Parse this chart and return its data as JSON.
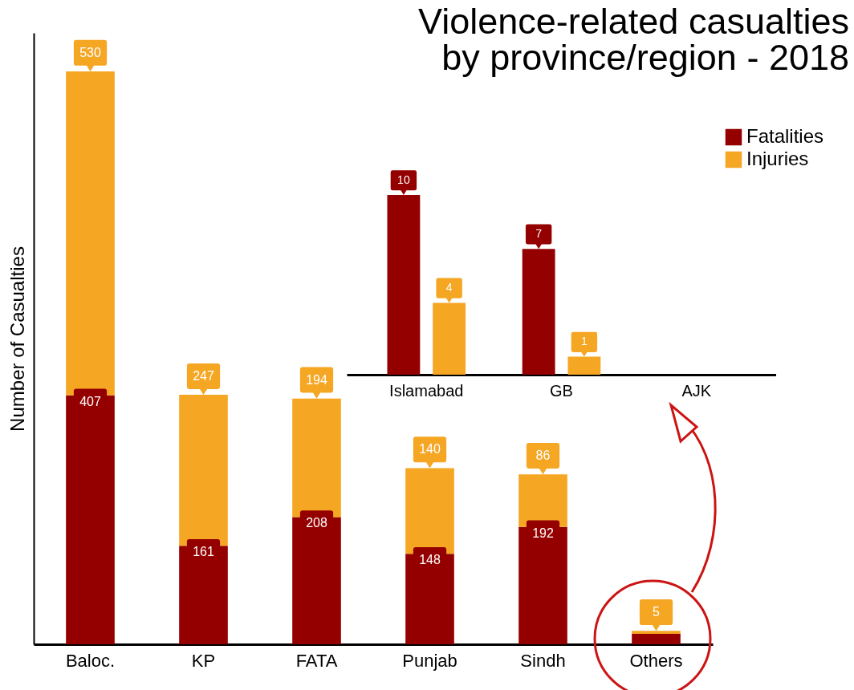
{
  "chart_data": [
    {
      "type": "bar",
      "title": "Violence-related casualties by province/region - 2018",
      "ylabel": "Number of Casualties",
      "categories": [
        "Baloc.",
        "KP",
        "FATA",
        "Punjab",
        "Sindh",
        "Others"
      ],
      "stacked": true,
      "legend": "top right",
      "tick_labels": "x",
      "series": [
        {
          "name": "Fatalities",
          "color": "#940000",
          "values": [
            407,
            161,
            208,
            148,
            192,
            17
          ],
          "value_labels": [
            "407",
            "161",
            "208",
            "148",
            "192",
            null
          ]
        },
        {
          "name": "Injuries",
          "color": "#f5a623",
          "values": [
            530,
            247,
            194,
            140,
            86,
            5
          ],
          "value_labels": [
            "530",
            "247",
            "194",
            "140",
            "86",
            "5"
          ]
        }
      ]
    },
    {
      "type": "bar",
      "categories": [
        "Islamabad",
        "GB",
        "AJK"
      ],
      "tick_labels": "x",
      "series": [
        {
          "color": "#940000",
          "values": [
            10,
            7,
            null
          ],
          "value_labels": [
            "10",
            "7",
            null
          ]
        },
        {
          "color": "#f5a623",
          "values": [
            4,
            1,
            null
          ],
          "value_labels": [
            "4",
            "1",
            null
          ]
        }
      ]
    }
  ]
}
